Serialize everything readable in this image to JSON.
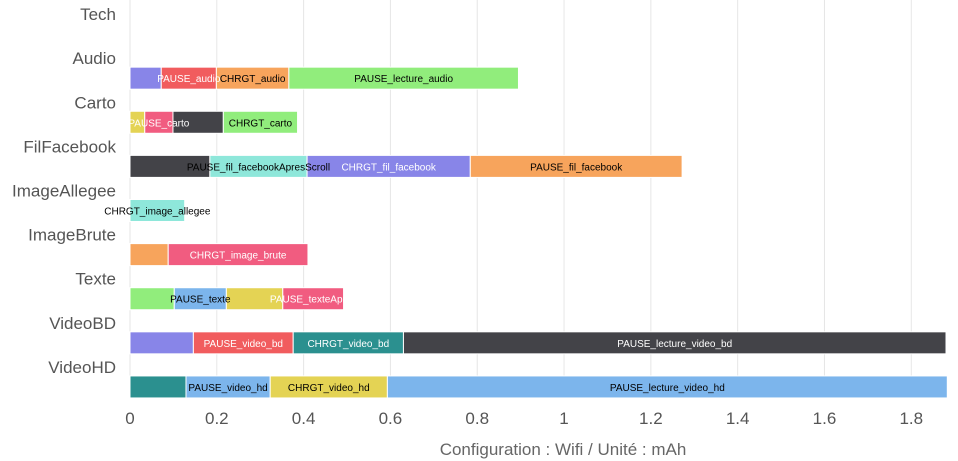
{
  "chart_data": {
    "type": "bar",
    "orientation": "horizontal",
    "stacked": true,
    "xlabel": "Configuration : Wifi / Unité : mAh",
    "xlim": [
      0,
      1.88
    ],
    "xticks": [
      0,
      0.2,
      0.4,
      0.6,
      0.8,
      1,
      1.2,
      1.4,
      1.6,
      1.8
    ],
    "xtick_labels": [
      "0",
      "0.2",
      "0.4",
      "0.6",
      "0.8",
      "1",
      "1.2",
      "1.4",
      "1.6",
      "1.8"
    ],
    "grid": true,
    "categories": [
      "Tech",
      "Audio",
      "Carto",
      "FilFacebook",
      "ImageAllegee",
      "ImageBrute",
      "Texte",
      "VideoBD",
      "VideoHD"
    ],
    "bars": [
      {
        "category": "Tech",
        "segments": []
      },
      {
        "category": "Audio",
        "segments": [
          {
            "label": "",
            "value": 0.072,
            "color": "#8885e8"
          },
          {
            "label": "PAUSE_audio",
            "value": 0.127,
            "color": "#f15c5e"
          },
          {
            "label": "CHRGT_audio",
            "value": 0.167,
            "color": "#f7a45c"
          },
          {
            "label": "PAUSE_lecture_audio",
            "value": 0.529,
            "color": "#91ed7c"
          }
        ]
      },
      {
        "category": "Carto",
        "segments": [
          {
            "label": "",
            "value": 0.034,
            "color": "#e4d354"
          },
          {
            "label": "PAUSE_carto",
            "value": 0.065,
            "color": "#f15c80"
          },
          {
            "label": "",
            "value": 0.116,
            "color": "#434348"
          },
          {
            "label": "CHRGT_carto",
            "value": 0.171,
            "color": "#91ed7c"
          }
        ]
      },
      {
        "category": "FilFacebook",
        "segments": [
          {
            "label": "",
            "value": 0.184,
            "color": "#434348"
          },
          {
            "label": "PAUSE_fil_facebookApresScroll",
            "value": 0.224,
            "color": "#8ee7da"
          },
          {
            "label": "CHRGT_fil_facebook",
            "value": 0.376,
            "color": "#8885e8"
          },
          {
            "label": "PAUSE_fil_facebook",
            "value": 0.488,
            "color": "#f7a45c"
          }
        ]
      },
      {
        "category": "ImageAllegee",
        "segments": [
          {
            "label": "CHRGT_image_allegee",
            "value": 0.126,
            "color": "#8ee7da"
          }
        ]
      },
      {
        "category": "ImageBrute",
        "segments": [
          {
            "label": "",
            "value": 0.088,
            "color": "#f7a45c"
          },
          {
            "label": "CHRGT_image_brute",
            "value": 0.322,
            "color": "#f15c80"
          }
        ]
      },
      {
        "category": "Texte",
        "segments": [
          {
            "label": "",
            "value": 0.102,
            "color": "#91ed7c"
          },
          {
            "label": "PAUSE_texte",
            "value": 0.12,
            "color": "#7cb5ec"
          },
          {
            "label": "",
            "value": 0.13,
            "color": "#e4d354"
          },
          {
            "label": "PAUSE_texteApres",
            "value": 0.14,
            "color": "#f15c80"
          }
        ]
      },
      {
        "category": "VideoBD",
        "segments": [
          {
            "label": "",
            "value": 0.146,
            "color": "#8885e8"
          },
          {
            "label": "PAUSE_video_bd",
            "value": 0.23,
            "color": "#f15c5e"
          },
          {
            "label": "CHRGT_video_bd",
            "value": 0.254,
            "color": "#2b908f"
          },
          {
            "label": "PAUSE_lecture_video_bd",
            "value": 1.25,
            "color": "#434348"
          }
        ]
      },
      {
        "category": "VideoHD",
        "segments": [
          {
            "label": "",
            "value": 0.129,
            "color": "#2b908f"
          },
          {
            "label": "PAUSE_video_hd",
            "value": 0.194,
            "color": "#7cb5ec"
          },
          {
            "label": "CHRGT_video_hd",
            "value": 0.27,
            "color": "#e4d354"
          },
          {
            "label": "PAUSE_lecture_video_hd",
            "value": 1.29,
            "color": "#7cb5ec"
          }
        ]
      }
    ]
  }
}
